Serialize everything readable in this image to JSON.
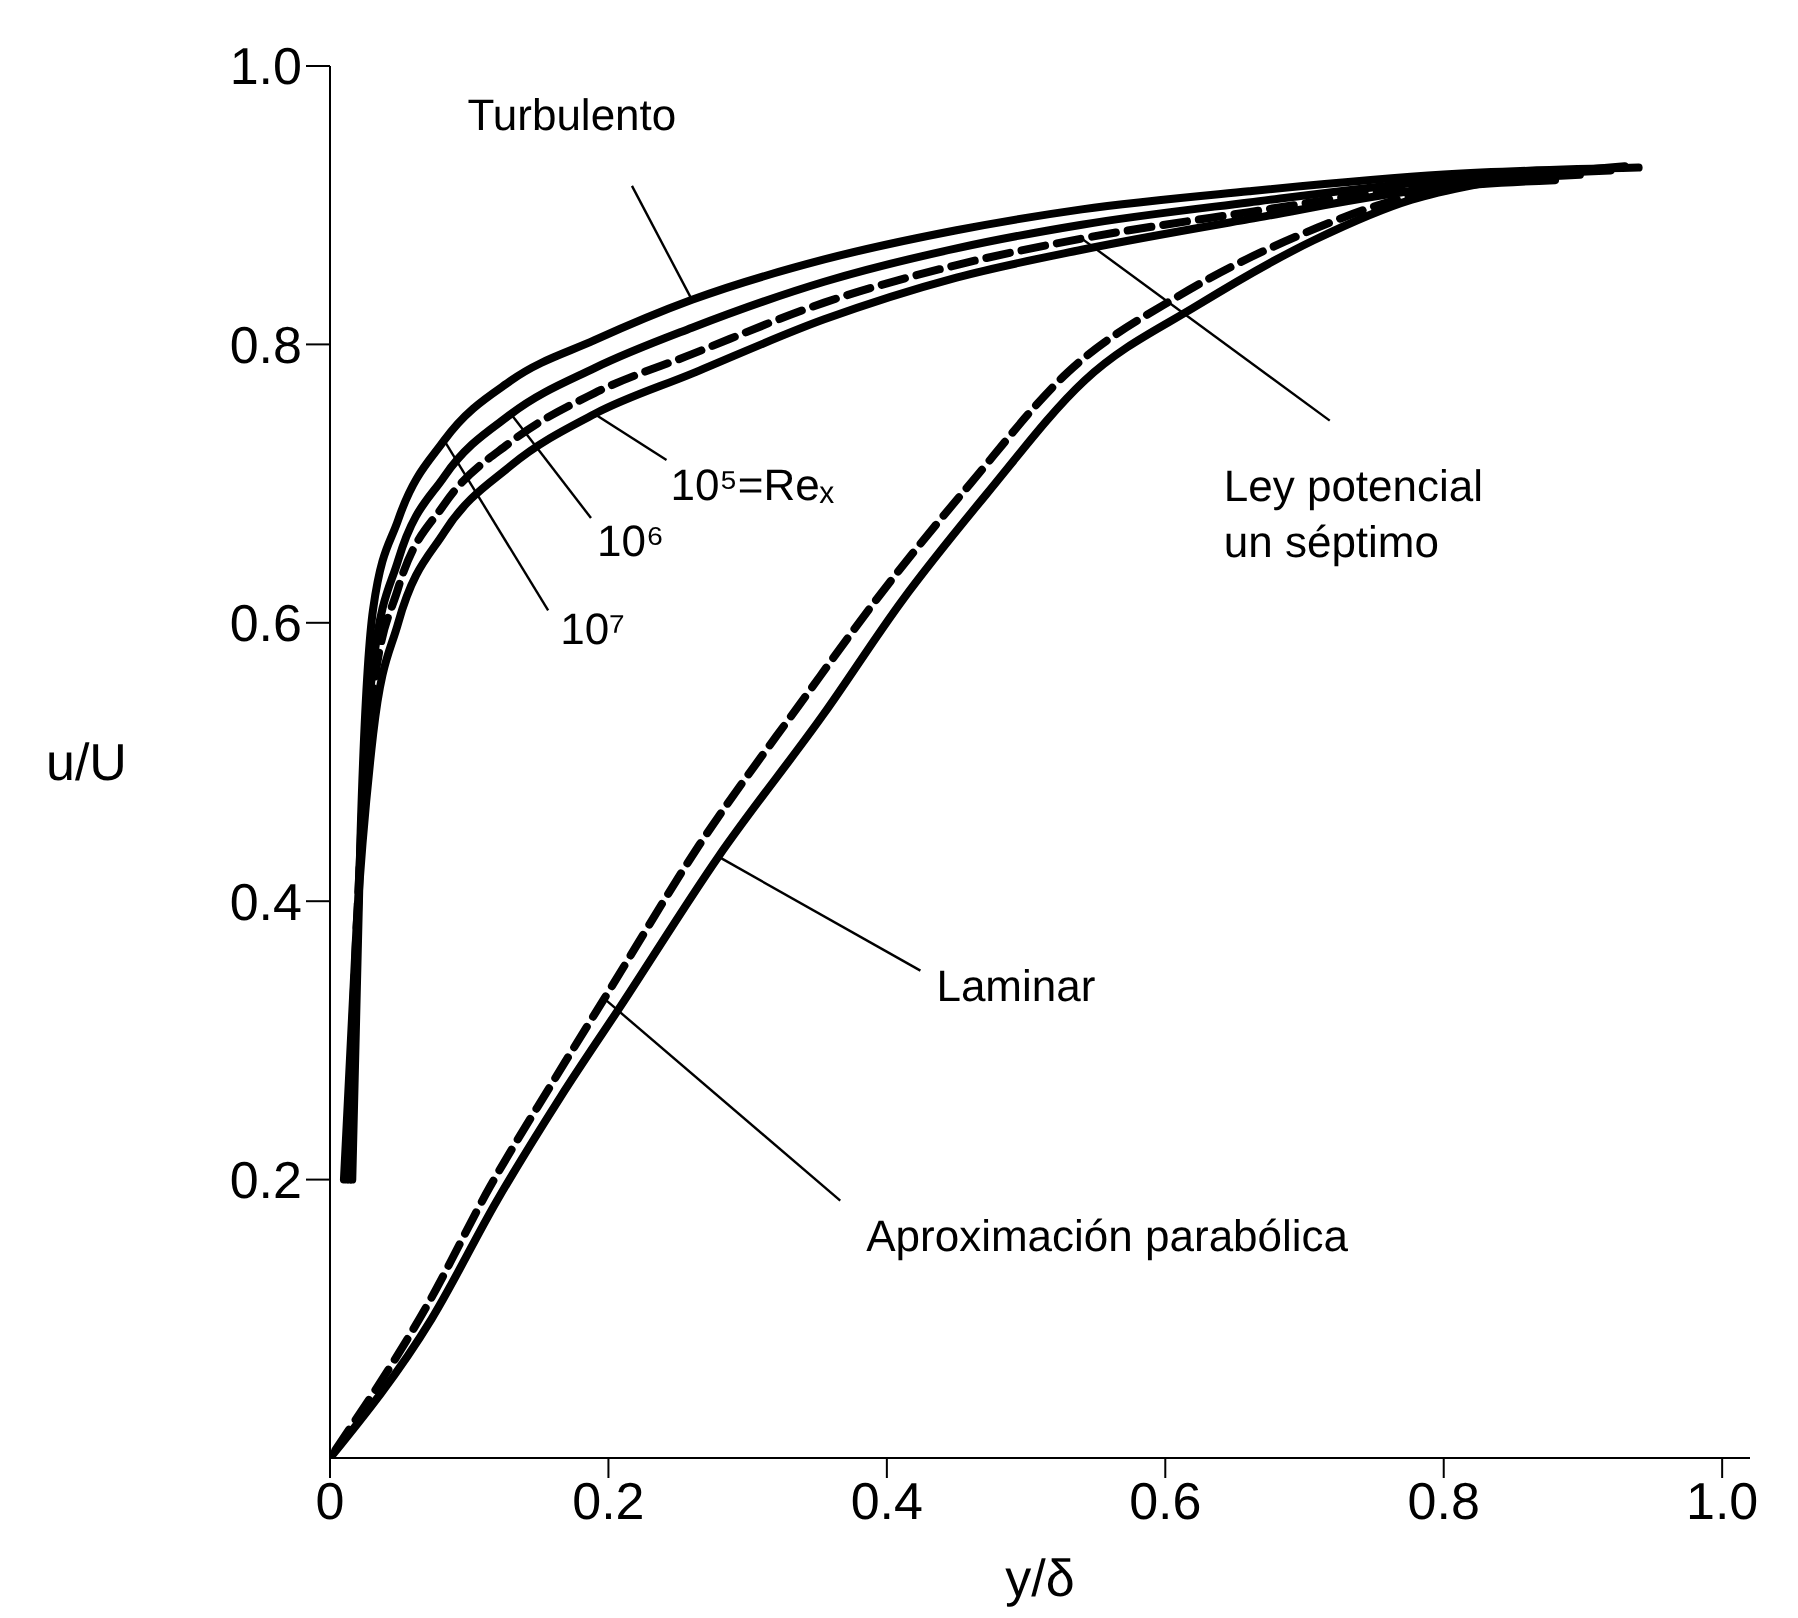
{
  "chart_data": {
    "type": "line",
    "xlabel": "y/δ",
    "ylabel": "u/U",
    "xlim": [
      0,
      1.02
    ],
    "ylim": [
      0,
      1.0
    ],
    "xticks": [
      0,
      0.2,
      0.4,
      0.6,
      0.8,
      {
        "value": 1,
        "label": "1.0"
      }
    ],
    "yticks": [
      0.2,
      0.4,
      0.6,
      0.8,
      {
        "value": 1,
        "label": "1.0"
      }
    ],
    "grid": false,
    "legend": false,
    "marker": "none",
    "annotations": [
      {
        "text": "Turbulento",
        "x": 0.26,
        "y": 0.832
      },
      {
        "text": "10⁵=Reₓ",
        "x": 0.19,
        "y": 0.75
      },
      {
        "text": "10⁶",
        "x": 0.13,
        "y": 0.75
      },
      {
        "text": "10⁷",
        "x": 0.082,
        "y": 0.731
      },
      {
        "text": "Ley potencial un séptimo",
        "x": 0.54,
        "y": 0.876
      },
      {
        "text": "Laminar",
        "x": 0.279,
        "y": 0.432
      },
      {
        "text": "Aproximación parabólica",
        "x": 0.197,
        "y": 0.33
      }
    ],
    "series": [
      {
        "color": "#000000",
        "line_style": "solid",
        "x": [
          0.016,
          0.022,
          0.031,
          0.049,
          0.082,
          0.13,
          0.19,
          0.26,
          0.355,
          0.45,
          0.54,
          0.66,
          0.8,
          0.94
        ],
        "values": [
          0.2,
          0.45,
          0.61,
          0.674,
          0.731,
          0.774,
          0.803,
          0.832,
          0.861,
          0.882,
          0.897,
          0.91,
          0.922,
          0.927
        ]
      },
      {
        "color": "#000000",
        "line_style": "solid",
        "x": [
          0.014,
          0.021,
          0.031,
          0.049,
          0.082,
          0.13,
          0.19,
          0.26,
          0.355,
          0.45,
          0.54,
          0.66,
          0.8,
          0.92
        ],
        "values": [
          0.2,
          0.42,
          0.57,
          0.645,
          0.705,
          0.75,
          0.783,
          0.812,
          0.845,
          0.869,
          0.886,
          0.902,
          0.918,
          0.925
        ]
      },
      {
        "color": "#000000",
        "line_style": "dashed",
        "x": [
          0.012,
          0.02,
          0.031,
          0.049,
          0.082,
          0.13,
          0.19,
          0.26,
          0.355,
          0.45,
          0.54,
          0.66,
          0.8,
          0.9
        ],
        "values": [
          0.2,
          0.4,
          0.55,
          0.625,
          0.685,
          0.73,
          0.765,
          0.793,
          0.83,
          0.857,
          0.876,
          0.895,
          0.915,
          0.922
        ]
      },
      {
        "color": "#000000",
        "line_style": "solid",
        "x": [
          0.01,
          0.019,
          0.031,
          0.049,
          0.082,
          0.13,
          0.19,
          0.26,
          0.355,
          0.45,
          0.54,
          0.66,
          0.8,
          0.88
        ],
        "values": [
          0.2,
          0.38,
          0.52,
          0.6,
          0.665,
          0.713,
          0.75,
          0.779,
          0.818,
          0.848,
          0.868,
          0.89,
          0.913,
          0.918
        ]
      },
      {
        "color": "#000000",
        "line_style": "solid",
        "x": [
          0,
          0.073,
          0.12,
          0.166,
          0.209,
          0.279,
          0.355,
          0.411,
          0.472,
          0.542,
          0.623,
          0.707,
          0.777,
          0.824,
          0.93
        ],
        "values": [
          0,
          0.1,
          0.185,
          0.26,
          0.325,
          0.432,
          0.535,
          0.616,
          0.693,
          0.774,
          0.828,
          0.875,
          0.904,
          0.915,
          0.928
        ]
      },
      {
        "color": "#000000",
        "line_style": "dashed",
        "x": [
          0.004,
          0.07,
          0.115,
          0.16,
          0.197,
          0.265,
          0.34,
          0.395,
          0.46,
          0.53,
          0.61,
          0.7,
          0.77,
          0.83
        ],
        "values": [
          0.006,
          0.11,
          0.195,
          0.27,
          0.33,
          0.44,
          0.545,
          0.62,
          0.7,
          0.78,
          0.835,
          0.88,
          0.905,
          0.916
        ]
      }
    ]
  }
}
